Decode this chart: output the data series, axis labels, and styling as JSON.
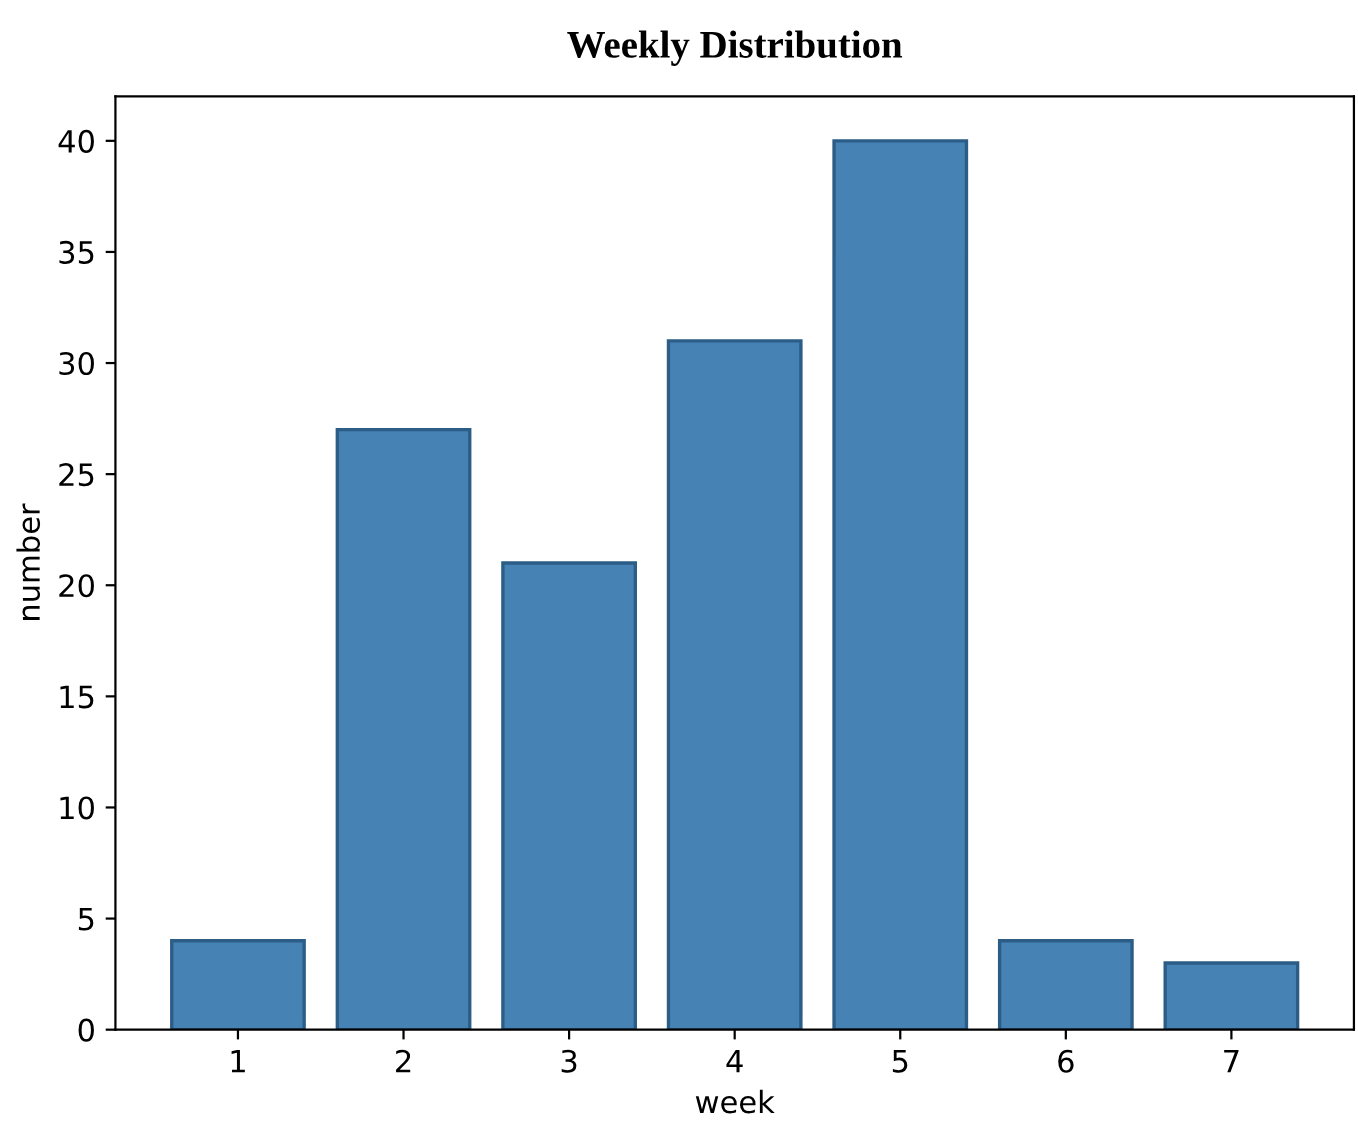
{
  "chart_data": {
    "type": "bar",
    "title": "Weekly Distribution",
    "xlabel": "week",
    "ylabel": "number",
    "categories": [
      "1",
      "2",
      "3",
      "4",
      "5",
      "6",
      "7"
    ],
    "values": [
      4,
      27,
      21,
      31,
      40,
      4,
      3
    ],
    "color": "#4682b4",
    "ylim": [
      0,
      42
    ],
    "yticks": [
      0,
      5,
      10,
      15,
      20,
      25,
      30,
      35,
      40
    ],
    "grid": false,
    "legend": false
  }
}
